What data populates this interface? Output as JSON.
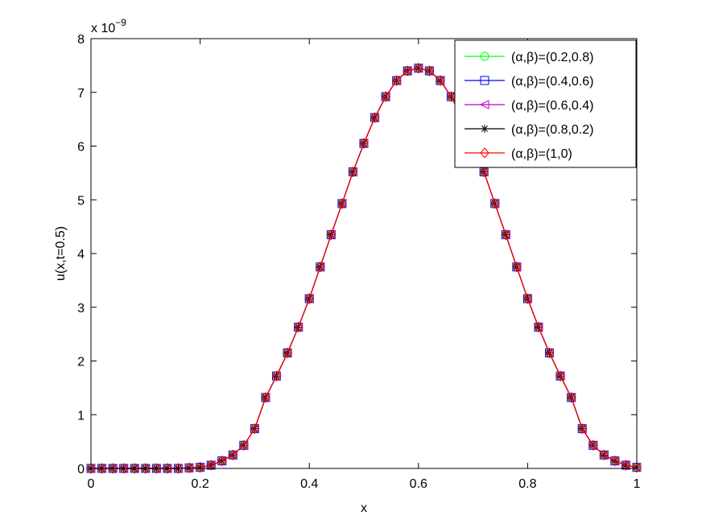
{
  "chart_data": {
    "type": "line",
    "title": "",
    "xlabel": "x",
    "ylabel": "u(x,t=0.5)",
    "exponent_base": "x 10",
    "exponent_power": "−9",
    "xlim": [
      0,
      1
    ],
    "ylim": [
      0,
      8
    ],
    "xticks": [
      0,
      0.2,
      0.4,
      0.6,
      0.8,
      1
    ],
    "xtick_labels": [
      "0",
      "0.2",
      "0.4",
      "0.6",
      "0.8",
      "1"
    ],
    "yticks": [
      0,
      1,
      2,
      3,
      4,
      5,
      6,
      7,
      8
    ],
    "ytick_labels": [
      "0",
      "1",
      "2",
      "3",
      "4",
      "5",
      "6",
      "7",
      "8"
    ],
    "grid": false,
    "legend_position": "top-right",
    "x": [
      0,
      0.02,
      0.04,
      0.06,
      0.08,
      0.1,
      0.12,
      0.14,
      0.16,
      0.18,
      0.2,
      0.22,
      0.24,
      0.26,
      0.28,
      0.3,
      0.32,
      0.34,
      0.36,
      0.38,
      0.4,
      0.42,
      0.44,
      0.46,
      0.48,
      0.5,
      0.52,
      0.54,
      0.56,
      0.58,
      0.6,
      0.62,
      0.64,
      0.66,
      0.68,
      0.7,
      0.72,
      0.74,
      0.76,
      0.78,
      0.8,
      0.82,
      0.84,
      0.86,
      0.88,
      0.9,
      0.92,
      0.94,
      0.96,
      0.98,
      1
    ],
    "series": [
      {
        "name": "(α,β)=(0.2,0.8)",
        "color": "#00ff00",
        "marker": "circle",
        "values": [
          0,
          0,
          0,
          0,
          0,
          0,
          0,
          0,
          0,
          0.01,
          0.02,
          0.06,
          0.14,
          0.25,
          0.43,
          0.74,
          1.32,
          1.72,
          2.15,
          2.63,
          3.16,
          3.75,
          4.35,
          4.93,
          5.52,
          6.05,
          6.53,
          6.92,
          7.22,
          7.4,
          7.45,
          7.4,
          7.22,
          6.92,
          6.53,
          6.05,
          5.52,
          4.93,
          4.35,
          3.75,
          3.16,
          2.63,
          2.15,
          1.72,
          1.32,
          0.74,
          0.43,
          0.25,
          0.14,
          0.06,
          0.02
        ]
      },
      {
        "name": "(α,β)=(0.4,0.6)",
        "color": "#0000ff",
        "marker": "square",
        "values": [
          0,
          0,
          0,
          0,
          0,
          0,
          0,
          0,
          0,
          0.01,
          0.02,
          0.06,
          0.14,
          0.25,
          0.43,
          0.74,
          1.32,
          1.72,
          2.15,
          2.63,
          3.16,
          3.75,
          4.35,
          4.93,
          5.52,
          6.05,
          6.53,
          6.92,
          7.22,
          7.4,
          7.45,
          7.4,
          7.22,
          6.92,
          6.53,
          6.05,
          5.52,
          4.93,
          4.35,
          3.75,
          3.16,
          2.63,
          2.15,
          1.72,
          1.32,
          0.74,
          0.43,
          0.25,
          0.14,
          0.06,
          0.02
        ]
      },
      {
        "name": "(α,β)=(0.6,0.4)",
        "color": "#bf00bf",
        "marker": "triangle-left",
        "values": [
          0,
          0,
          0,
          0,
          0,
          0,
          0,
          0,
          0,
          0.01,
          0.02,
          0.06,
          0.14,
          0.25,
          0.43,
          0.74,
          1.32,
          1.72,
          2.15,
          2.63,
          3.16,
          3.75,
          4.35,
          4.93,
          5.52,
          6.05,
          6.53,
          6.92,
          7.22,
          7.4,
          7.45,
          7.4,
          7.22,
          6.92,
          6.53,
          6.05,
          5.52,
          4.93,
          4.35,
          3.75,
          3.16,
          2.63,
          2.15,
          1.72,
          1.32,
          0.74,
          0.43,
          0.25,
          0.14,
          0.06,
          0.02
        ]
      },
      {
        "name": "(α,β)=(0.8,0.2)",
        "color": "#000000",
        "marker": "asterisk",
        "values": [
          0,
          0,
          0,
          0,
          0,
          0,
          0,
          0,
          0,
          0.01,
          0.02,
          0.06,
          0.14,
          0.25,
          0.43,
          0.74,
          1.32,
          1.72,
          2.15,
          2.63,
          3.16,
          3.75,
          4.35,
          4.93,
          5.52,
          6.05,
          6.53,
          6.92,
          7.22,
          7.4,
          7.45,
          7.4,
          7.22,
          6.92,
          6.53,
          6.05,
          5.52,
          4.93,
          4.35,
          3.75,
          3.16,
          2.63,
          2.15,
          1.72,
          1.32,
          0.74,
          0.43,
          0.25,
          0.14,
          0.06,
          0.02
        ]
      },
      {
        "name": "(α,β)=(1,0)",
        "color": "#ff0000",
        "marker": "diamond",
        "values": [
          0,
          0,
          0,
          0,
          0,
          0,
          0,
          0,
          0,
          0.01,
          0.02,
          0.06,
          0.14,
          0.25,
          0.43,
          0.74,
          1.32,
          1.72,
          2.15,
          2.63,
          3.16,
          3.75,
          4.35,
          4.93,
          5.52,
          6.05,
          6.53,
          6.92,
          7.22,
          7.4,
          7.45,
          7.4,
          7.22,
          6.92,
          6.53,
          6.05,
          5.52,
          4.93,
          4.35,
          3.75,
          3.16,
          2.63,
          2.15,
          1.72,
          1.32,
          0.74,
          0.43,
          0.25,
          0.14,
          0.06,
          0.02
        ]
      }
    ]
  }
}
